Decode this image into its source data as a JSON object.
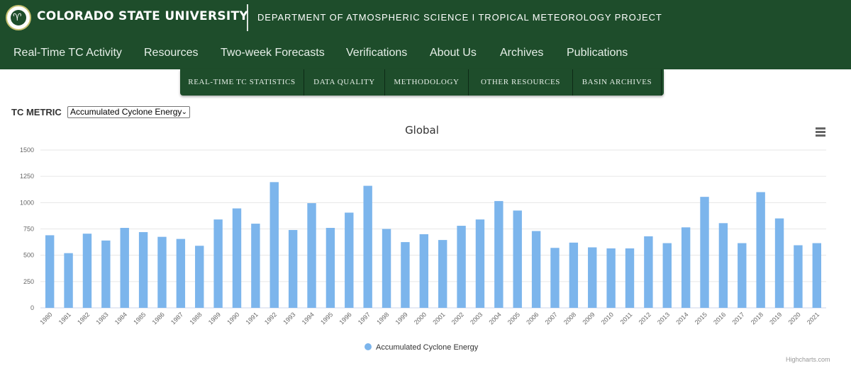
{
  "header": {
    "university": "COLORADO STATE UNIVERSITY",
    "department": "DEPARTMENT OF ATMOSPHERIC SCIENCE I TROPICAL METEOROLOGY PROJECT",
    "logo_icon": "csu-ram-logo",
    "brand_color": "#1e4d2b"
  },
  "nav": {
    "items": [
      "Real-Time TC Activity",
      "Resources",
      "Two-week Forecasts",
      "Verifications",
      "About Us",
      "Archives",
      "Publications"
    ]
  },
  "subnav": {
    "items": [
      "REAL-TIME TC STATISTICS",
      "DATA QUALITY",
      "METHODOLOGY",
      "OTHER RESOURCES",
      "BASIN ARCHIVES"
    ]
  },
  "metric": {
    "label": "TC METRIC",
    "selected": "Accumulated Cyclone Energy"
  },
  "chart_menu_icon": "hamburger-menu-icon",
  "credits": "Highcharts.com",
  "chart_data": {
    "type": "bar",
    "title": "Global",
    "categories": [
      "1980",
      "1981",
      "1982",
      "1983",
      "1984",
      "1985",
      "1986",
      "1987",
      "1988",
      "1989",
      "1990",
      "1991",
      "1992",
      "1993",
      "1994",
      "1995",
      "1996",
      "1997",
      "1998",
      "1999",
      "2000",
      "2001",
      "2002",
      "2003",
      "2004",
      "2005",
      "2006",
      "2007",
      "2008",
      "2009",
      "2010",
      "2011",
      "2012",
      "2013",
      "2014",
      "2015",
      "2016",
      "2017",
      "2018",
      "2019",
      "2020",
      "2021"
    ],
    "series": [
      {
        "name": "Accumulated Cyclone Energy",
        "color": "#7cb5ec",
        "values": [
          690,
          520,
          705,
          640,
          760,
          720,
          675,
          655,
          590,
          840,
          945,
          800,
          1195,
          740,
          995,
          760,
          905,
          1160,
          750,
          625,
          700,
          645,
          780,
          840,
          1015,
          925,
          730,
          570,
          620,
          575,
          565,
          565,
          680,
          615,
          765,
          1055,
          805,
          615,
          1100,
          850,
          595,
          615
        ]
      }
    ],
    "yticks": [
      "0",
      "250",
      "500",
      "750",
      "1000",
      "1250",
      "1500"
    ],
    "ylim": [
      0,
      1500
    ],
    "grid": true,
    "legend_position": "bottom-center"
  }
}
